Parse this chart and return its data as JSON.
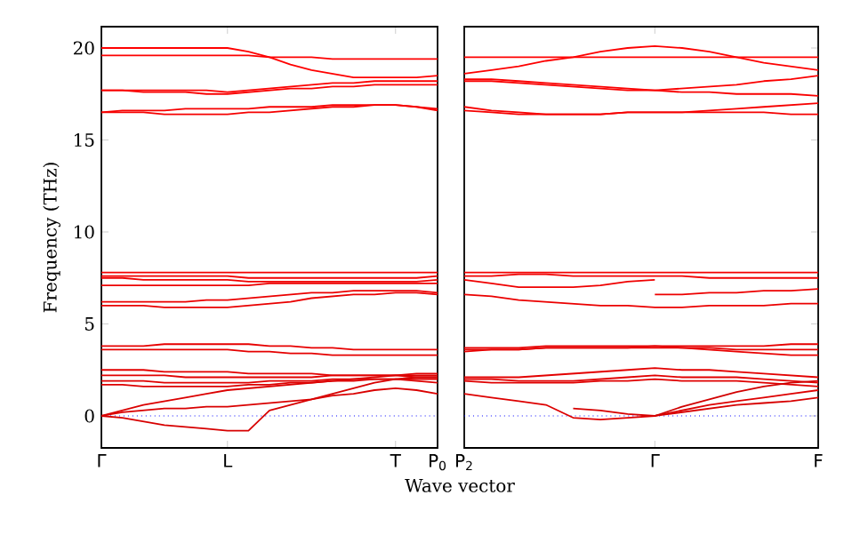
{
  "chart_data": [
    {
      "type": "line",
      "ylabel": "Frequency (THz)",
      "xlabel": "Wave vector",
      "ylim": [
        -1.74,
        21.16
      ],
      "yticks": [
        0,
        5,
        10,
        15,
        20
      ],
      "categories": [
        "Γ",
        null,
        null,
        null,
        null,
        null,
        "L",
        null,
        null,
        null,
        null,
        null,
        null,
        null,
        "T",
        null,
        "P$_{0}$"
      ],
      "grid": false,
      "ref_lines": [
        {
          "axis": "y",
          "value": 0,
          "color": "#0000ff",
          "line_style": "dotted"
        }
      ],
      "series": [
        {
          "color": "#ff0000",
          "values": [
            20.0,
            20.0,
            20.0,
            20.0,
            20.0,
            20.0,
            20.0,
            19.8,
            19.5,
            19.1,
            18.8,
            18.6,
            18.4,
            18.4,
            18.4,
            18.4,
            18.5
          ]
        },
        {
          "color": "#fd0000",
          "values": [
            19.6,
            19.6,
            19.6,
            19.6,
            19.6,
            19.6,
            19.6,
            19.6,
            19.5,
            19.5,
            19.5,
            19.4,
            19.4,
            19.4,
            19.4,
            19.4,
            19.4
          ]
        },
        {
          "color": "#fb0000",
          "values": [
            17.7,
            17.7,
            17.7,
            17.7,
            17.7,
            17.7,
            17.6,
            17.7,
            17.8,
            17.9,
            18.0,
            18.1,
            18.1,
            18.2,
            18.2,
            18.2,
            18.2
          ]
        },
        {
          "color": "#f90000",
          "values": [
            17.7,
            17.7,
            17.6,
            17.6,
            17.6,
            17.5,
            17.5,
            17.6,
            17.7,
            17.8,
            17.8,
            17.9,
            17.9,
            18.0,
            18.0,
            18.0,
            18.0
          ]
        },
        {
          "color": "#f70000",
          "values": [
            16.5,
            16.6,
            16.6,
            16.6,
            16.7,
            16.7,
            16.7,
            16.7,
            16.8,
            16.8,
            16.8,
            16.9,
            16.9,
            16.9,
            16.9,
            16.8,
            16.6
          ]
        },
        {
          "color": "#f50000",
          "values": [
            16.5,
            16.5,
            16.5,
            16.4,
            16.4,
            16.4,
            16.4,
            16.5,
            16.5,
            16.6,
            16.7,
            16.8,
            16.8,
            16.9,
            16.9,
            16.8,
            16.7
          ]
        },
        {
          "color": "#f30000",
          "values": [
            7.8,
            7.8,
            7.8,
            7.8,
            7.8,
            7.8,
            7.8,
            7.8,
            7.8,
            7.8,
            7.8,
            7.8,
            7.8,
            7.8,
            7.8,
            7.8,
            7.8
          ]
        },
        {
          "color": "#f10000",
          "values": [
            7.6,
            7.6,
            7.6,
            7.6,
            7.6,
            7.6,
            7.6,
            7.5,
            7.5,
            7.5,
            7.5,
            7.5,
            7.5,
            7.5,
            7.5,
            7.5,
            7.6
          ]
        },
        {
          "color": "#ef0000",
          "values": [
            7.5,
            7.5,
            7.4,
            7.4,
            7.4,
            7.4,
            7.4,
            7.3,
            7.3,
            7.3,
            7.3,
            7.3,
            7.3,
            7.3,
            7.3,
            7.3,
            7.4
          ]
        },
        {
          "color": "#ed0000",
          "values": [
            7.1,
            7.1,
            7.1,
            7.1,
            7.1,
            7.1,
            7.1,
            7.1,
            7.2,
            7.2,
            7.2,
            7.2,
            7.2,
            7.2,
            7.2,
            7.2,
            7.2
          ]
        },
        {
          "color": "#eb0000",
          "values": [
            6.2,
            6.2,
            6.2,
            6.2,
            6.2,
            6.3,
            6.3,
            6.4,
            6.5,
            6.6,
            6.7,
            6.7,
            6.8,
            6.8,
            6.8,
            6.8,
            6.7
          ]
        },
        {
          "color": "#e90000",
          "values": [
            6.0,
            6.0,
            6.0,
            5.9,
            5.9,
            5.9,
            5.9,
            6.0,
            6.1,
            6.2,
            6.4,
            6.5,
            6.6,
            6.6,
            6.7,
            6.7,
            6.6
          ]
        },
        {
          "color": "#e70000",
          "values": [
            3.8,
            3.8,
            3.8,
            3.9,
            3.9,
            3.9,
            3.9,
            3.9,
            3.8,
            3.8,
            3.7,
            3.7,
            3.6,
            3.6,
            3.6,
            3.6,
            3.6
          ]
        },
        {
          "color": "#e50000",
          "values": [
            3.6,
            3.6,
            3.6,
            3.6,
            3.6,
            3.6,
            3.6,
            3.5,
            3.5,
            3.4,
            3.4,
            3.3,
            3.3,
            3.3,
            3.3,
            3.3,
            3.3
          ]
        },
        {
          "color": "#e30000",
          "values": [
            2.5,
            2.5,
            2.5,
            2.4,
            2.4,
            2.4,
            2.4,
            2.3,
            2.3,
            2.3,
            2.3,
            2.2,
            2.2,
            2.2,
            2.2,
            2.1,
            2.1
          ]
        },
        {
          "color": "#e10000",
          "values": [
            2.2,
            2.2,
            2.2,
            2.2,
            2.1,
            2.1,
            2.1,
            2.1,
            2.1,
            2.1,
            2.1,
            2.2,
            2.2,
            2.2,
            2.2,
            2.3,
            2.3
          ]
        },
        {
          "color": "#df0000",
          "values": [
            1.9,
            1.9,
            1.9,
            1.8,
            1.8,
            1.8,
            1.8,
            1.8,
            1.9,
            1.9,
            1.9,
            2.0,
            2.0,
            2.0,
            2.0,
            2.0,
            2.0
          ]
        },
        {
          "color": "#dd0000",
          "values": [
            1.7,
            1.7,
            1.6,
            1.6,
            1.6,
            1.6,
            1.6,
            1.7,
            1.7,
            1.8,
            1.8,
            1.9,
            1.9,
            2.0,
            2.0,
            1.9,
            1.8
          ]
        },
        {
          "color": "#db0000",
          "values": [
            0,
            0.3,
            0.6,
            0.8,
            1.0,
            1.2,
            1.4,
            1.5,
            1.6,
            1.7,
            1.8,
            1.9,
            2.0,
            2.1,
            2.2,
            2.2,
            2.2
          ]
        },
        {
          "color": "#d90000",
          "values": [
            0,
            0.2,
            0.3,
            0.4,
            0.4,
            0.5,
            0.5,
            0.6,
            0.7,
            0.8,
            0.9,
            1.1,
            1.2,
            1.4,
            1.5,
            1.4,
            1.2
          ]
        },
        {
          "color": "#d70000",
          "values": [
            0,
            -0.1,
            -0.3,
            -0.5,
            -0.6,
            -0.7,
            -0.8,
            -0.8,
            0.3,
            0.6,
            0.9,
            1.2,
            1.5,
            1.8,
            2.0,
            2.1,
            2.1
          ]
        }
      ]
    },
    {
      "type": "line",
      "ylim": [
        -1.74,
        21.16
      ],
      "yticks": [
        0,
        5,
        10,
        15,
        20
      ],
      "tick_labels": "x",
      "categories": [
        "P$_{2}$",
        null,
        null,
        null,
        null,
        null,
        null,
        "Γ",
        null,
        null,
        null,
        null,
        null,
        "F"
      ],
      "grid": false,
      "ref_lines": [
        {
          "axis": "y",
          "value": 0,
          "color": "#0000ff",
          "line_style": "dotted"
        }
      ],
      "series": [
        {
          "color": "#ff0000",
          "values": [
            19.5,
            19.5,
            19.5,
            19.5,
            19.5,
            19.5,
            19.5,
            19.5,
            19.5,
            19.5,
            19.5,
            19.5,
            19.5,
            19.5
          ]
        },
        {
          "color": "#fd0000",
          "values": [
            18.6,
            18.8,
            19.0,
            19.3,
            19.5,
            19.8,
            20.0,
            20.1,
            20.0,
            19.8,
            19.5,
            19.2,
            19.0,
            18.8
          ]
        },
        {
          "color": "#fb0000",
          "values": [
            18.3,
            18.3,
            18.2,
            18.1,
            18.0,
            17.9,
            17.8,
            17.7,
            17.8,
            17.9,
            18.0,
            18.2,
            18.3,
            18.5
          ]
        },
        {
          "color": "#f90000",
          "values": [
            18.2,
            18.2,
            18.1,
            18.0,
            17.9,
            17.8,
            17.7,
            17.7,
            17.6,
            17.6,
            17.5,
            17.5,
            17.5,
            17.4
          ]
        },
        {
          "color": "#f70000",
          "values": [
            16.8,
            16.6,
            16.5,
            16.4,
            16.4,
            16.4,
            16.5,
            16.5,
            16.5,
            16.6,
            16.7,
            16.8,
            16.9,
            17.0
          ]
        },
        {
          "color": "#f50000",
          "values": [
            16.6,
            16.5,
            16.4,
            16.4,
            16.4,
            16.4,
            16.5,
            16.5,
            16.5,
            16.5,
            16.5,
            16.5,
            16.4,
            16.4
          ]
        },
        {
          "color": "#f30000",
          "values": [
            7.8,
            7.8,
            7.8,
            7.8,
            7.8,
            7.8,
            7.8,
            7.8,
            7.8,
            7.8,
            7.8,
            7.8,
            7.8,
            7.8
          ]
        },
        {
          "color": "#f10000",
          "values": [
            7.6,
            7.6,
            7.7,
            7.7,
            7.6,
            7.6,
            7.6,
            7.6,
            7.6,
            7.5,
            7.5,
            7.5,
            7.5,
            7.5
          ]
        },
        {
          "color": "#ef0000",
          "values": [
            7.4,
            7.2,
            7.0,
            7.0,
            7.0,
            7.1,
            7.3,
            7.4,
            null,
            null,
            null,
            null,
            null,
            null
          ]
        },
        {
          "color": "#ed0000",
          "values": [
            null,
            null,
            null,
            null,
            null,
            null,
            null,
            6.6,
            6.6,
            6.7,
            6.7,
            6.8,
            6.8,
            6.9
          ]
        },
        {
          "color": "#eb0000",
          "values": [
            6.6,
            6.5,
            6.3,
            6.2,
            6.1,
            6.0,
            6.0,
            5.9,
            5.9,
            6.0,
            6.0,
            6.0,
            6.1,
            6.1
          ]
        },
        {
          "color": "#e90000",
          "values": [
            3.5,
            3.6,
            3.6,
            3.7,
            3.7,
            3.7,
            3.7,
            3.7,
            3.7,
            3.6,
            3.5,
            3.4,
            3.3,
            3.3
          ]
        },
        {
          "color": "#e70000",
          "values": [
            3.7,
            3.7,
            3.7,
            3.8,
            3.8,
            3.8,
            3.8,
            3.8,
            3.8,
            3.8,
            3.8,
            3.8,
            3.9,
            3.9
          ]
        },
        {
          "color": "#e50000",
          "values": [
            3.6,
            3.6,
            3.6,
            3.7,
            3.7,
            3.7,
            3.7,
            3.8,
            3.7,
            3.7,
            3.6,
            3.6,
            3.6,
            3.6
          ]
        },
        {
          "color": "#e30000",
          "values": [
            2.1,
            2.1,
            2.1,
            2.2,
            2.3,
            2.4,
            2.5,
            2.6,
            2.5,
            2.5,
            2.4,
            2.3,
            2.2,
            2.1
          ]
        },
        {
          "color": "#e10000",
          "values": [
            2.0,
            2.0,
            1.9,
            1.9,
            1.9,
            2.0,
            2.1,
            2.2,
            2.1,
            2.1,
            2.1,
            2.0,
            1.9,
            1.8
          ]
        },
        {
          "color": "#df0000",
          "values": [
            1.9,
            1.8,
            1.8,
            1.8,
            1.8,
            1.9,
            1.9,
            2.0,
            1.9,
            1.9,
            1.9,
            1.8,
            1.7,
            1.6
          ]
        },
        {
          "color": "#dd0000",
          "values": [
            1.2,
            1.0,
            0.8,
            0.6,
            -0.1,
            -0.2,
            -0.1,
            0,
            0.3,
            0.6,
            0.8,
            1.0,
            1.2,
            1.4
          ]
        },
        {
          "color": "#d70000",
          "values": [
            null,
            null,
            null,
            null,
            0.4,
            0.3,
            0.1,
            0,
            0.2,
            0.4,
            0.6,
            0.7,
            0.8,
            1.0
          ]
        },
        {
          "color": "#d10000",
          "values": [
            null,
            null,
            null,
            null,
            null,
            null,
            null,
            0,
            0.5,
            0.9,
            1.3,
            1.6,
            1.8,
            1.9
          ]
        }
      ]
    }
  ]
}
